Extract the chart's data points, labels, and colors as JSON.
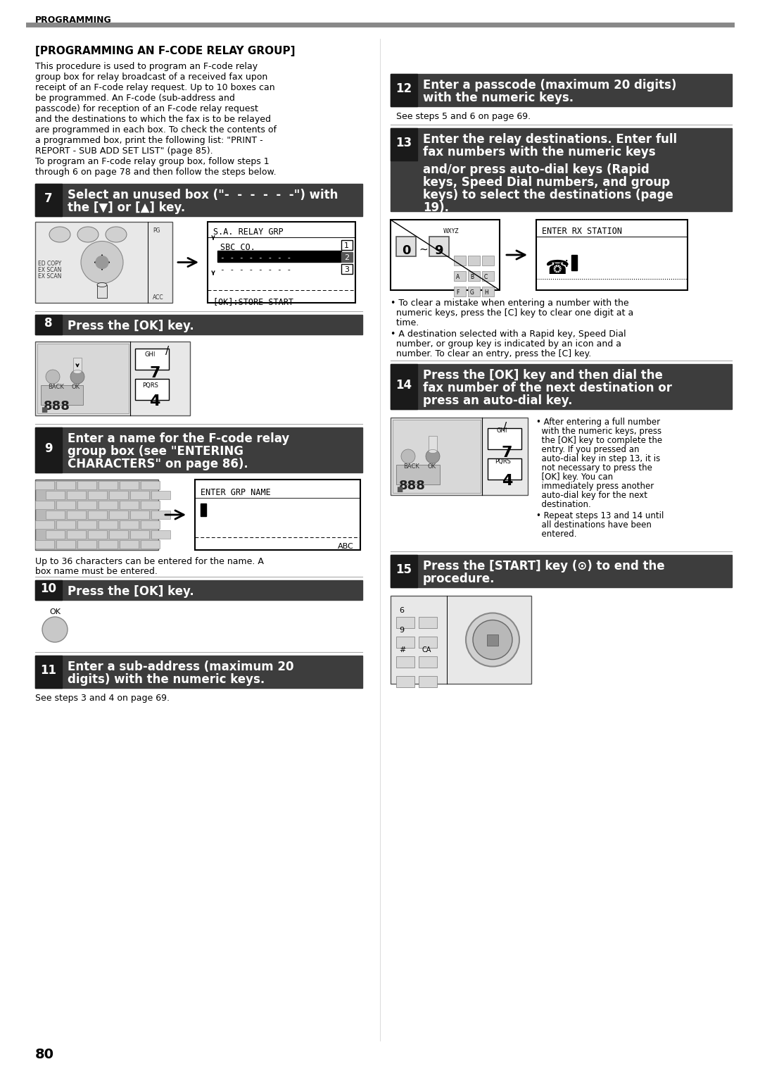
{
  "page_number": "80",
  "header_text": "PROGRAMMING",
  "section_title": "[PROGRAMMING AN F-CODE RELAY GROUP]",
  "intro_lines": [
    "This procedure is used to program an F-code relay",
    "group box for relay broadcast of a received fax upon",
    "receipt of an F-code relay request. Up to 10 boxes can",
    "be programmed. An F-code (sub-address and",
    "passcode) for reception of an F-code relay request",
    "and the destinations to which the fax is to be relayed",
    "are programmed in each box. To check the contents of",
    "a programmed box, print the following list: \"PRINT -",
    "REPORT - SUB ADD SET LIST\" (page 85).",
    "To program an F-code relay group box, follow steps 1",
    "through 6 on page 78 and then follow the steps below."
  ],
  "step7_line1": "Select an unused box (\"-  -  -  -  -  -\") with",
  "step7_line2": "the [▼] or [▲] key.",
  "step8_line1": "Press the [OK] key.",
  "step9_line1": "Enter a name for the F-code relay",
  "step9_line2": "group box (see \"ENTERING",
  "step9_line3": "CHARACTERS\" on page 86).",
  "step9_note1": "Up to 36 characters can be entered for the name. A",
  "step9_note2": "box name must be entered.",
  "step10_line1": "Press the [OK] key.",
  "step11_line1": "Enter a sub-address (maximum 20",
  "step11_line2": "digits) with the numeric keys.",
  "step11_note": "See steps 3 and 4 on page 69.",
  "step12_line1": "Enter a passcode (maximum 20 digits)",
  "step12_line2": "with the numeric keys.",
  "step12_note": "See steps 5 and 6 on page 69.",
  "step13_line1": "Enter the relay destinations. Enter full",
  "step13_line2": "fax numbers with the numeric keys",
  "step13_line3": "and/or press auto-dial keys (Rapid",
  "step13_line4": "keys, Speed Dial numbers, and group",
  "step13_line5": "keys) to select the destinations (page",
  "step13_line6": "19).",
  "step13_b1_1": "• To clear a mistake when entering a number with the",
  "step13_b1_2": "  numeric keys, press the [C] key to clear one digit at a",
  "step13_b1_3": "  time.",
  "step13_b2_1": "• A destination selected with a Rapid key, Speed Dial",
  "step13_b2_2": "  number, or group key is indicated by an icon and a",
  "step13_b2_3": "  number. To clear an entry, press the [C] key.",
  "step14_line1": "Press the [OK] key and then dial the",
  "step14_line2": "fax number of the next destination or",
  "step14_line3": "press an auto-dial key.",
  "step14_b1_1": "• After entering a full number",
  "step14_b1_2": "  with the numeric keys, press",
  "step14_b1_3": "  the [OK] key to complete the",
  "step14_b1_4": "  entry. If you pressed an",
  "step14_b1_5": "  auto-dial key in step 13, it is",
  "step14_b1_6": "  not necessary to press the",
  "step14_b1_7": "  [OK] key. You can",
  "step14_b1_8": "  immediately press another",
  "step14_b1_9": "  auto-dial key for the next",
  "step14_b1_10": "  destination.",
  "step14_b2_1": "• Repeat steps 13 and 14 until",
  "step14_b2_2": "  all destinations have been",
  "step14_b2_3": "  entered.",
  "step15_line1": "Press the [START] key (⊙) to end the",
  "step15_line2": "procedure.",
  "badge_color": "#3d3d3d",
  "badge_text_color": "#ffffff",
  "separator_color": "#aaaaaa",
  "bg_color": "#ffffff"
}
